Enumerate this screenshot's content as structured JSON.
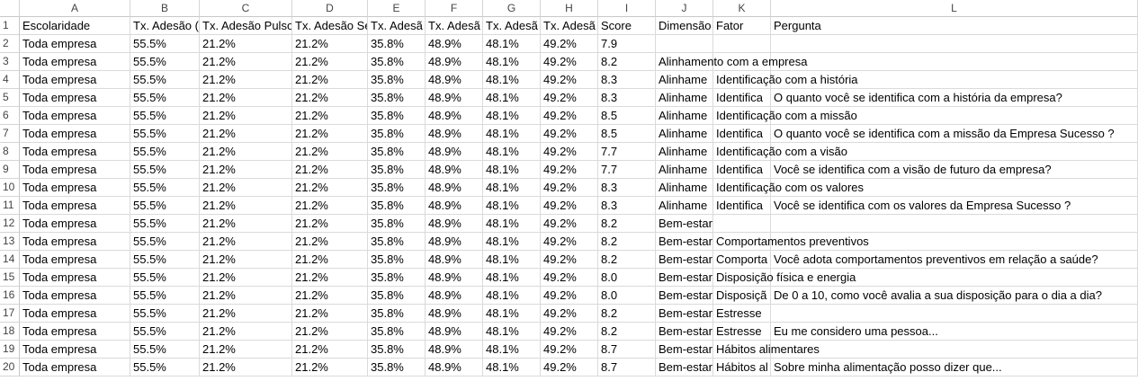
{
  "columns": [
    "A",
    "B",
    "C",
    "D",
    "E",
    "F",
    "G",
    "H",
    "I",
    "J",
    "K",
    "L"
  ],
  "rows": [
    {
      "n": 1,
      "cells": [
        "Escolaridade",
        "Tx. Adesão (",
        "Tx. Adesão Pulso",
        "Tx. Adesão Se",
        "Tx. Adesã",
        "Tx. Adesã",
        "Tx. Adesã",
        "Tx. Adesã",
        "Score",
        "Dimensão",
        "Fator",
        "Pergunta"
      ]
    },
    {
      "n": 2,
      "cells": [
        "Toda empresa",
        "55.5%",
        "21.2%",
        "21.2%",
        "35.8%",
        "48.9%",
        "48.1%",
        "49.2%",
        "7.9",
        null,
        null,
        null
      ]
    },
    {
      "n": 3,
      "cells": [
        "Toda empresa",
        "55.5%",
        "21.2%",
        "21.2%",
        "35.8%",
        "48.9%",
        "48.1%",
        "49.2%",
        "8.2",
        "Alinhamento com a empresa",
        null,
        null
      ]
    },
    {
      "n": 4,
      "cells": [
        "Toda empresa",
        "55.5%",
        "21.2%",
        "21.2%",
        "35.8%",
        "48.9%",
        "48.1%",
        "49.2%",
        "8.3",
        "Alinhame",
        "Identificação com a história",
        null
      ]
    },
    {
      "n": 5,
      "cells": [
        "Toda empresa",
        "55.5%",
        "21.2%",
        "21.2%",
        "35.8%",
        "48.9%",
        "48.1%",
        "49.2%",
        "8.3",
        "Alinhame",
        "Identifica",
        "O quanto você se identifica com a história da empresa?"
      ]
    },
    {
      "n": 6,
      "cells": [
        "Toda empresa",
        "55.5%",
        "21.2%",
        "21.2%",
        "35.8%",
        "48.9%",
        "48.1%",
        "49.2%",
        "8.5",
        "Alinhame",
        "Identificação com a missão",
        null
      ]
    },
    {
      "n": 7,
      "cells": [
        "Toda empresa",
        "55.5%",
        "21.2%",
        "21.2%",
        "35.8%",
        "48.9%",
        "48.1%",
        "49.2%",
        "8.5",
        "Alinhame",
        "Identifica",
        "O quanto você se identifica com a missão da Empresa Sucesso ?"
      ]
    },
    {
      "n": 8,
      "cells": [
        "Toda empresa",
        "55.5%",
        "21.2%",
        "21.2%",
        "35.8%",
        "48.9%",
        "48.1%",
        "49.2%",
        "7.7",
        "Alinhame",
        "Identificação com a visão",
        null
      ]
    },
    {
      "n": 9,
      "cells": [
        "Toda empresa",
        "55.5%",
        "21.2%",
        "21.2%",
        "35.8%",
        "48.9%",
        "48.1%",
        "49.2%",
        "7.7",
        "Alinhame",
        "Identifica",
        "Você se identifica com a visão de futuro da empresa?"
      ]
    },
    {
      "n": 10,
      "cells": [
        "Toda empresa",
        "55.5%",
        "21.2%",
        "21.2%",
        "35.8%",
        "48.9%",
        "48.1%",
        "49.2%",
        "8.3",
        "Alinhame",
        "Identificação com os valores",
        null
      ]
    },
    {
      "n": 11,
      "cells": [
        "Toda empresa",
        "55.5%",
        "21.2%",
        "21.2%",
        "35.8%",
        "48.9%",
        "48.1%",
        "49.2%",
        "8.3",
        "Alinhame",
        "Identifica",
        "Você se identifica com os valores da Empresa Sucesso ?"
      ]
    },
    {
      "n": 12,
      "cells": [
        "Toda empresa",
        "55.5%",
        "21.2%",
        "21.2%",
        "35.8%",
        "48.9%",
        "48.1%",
        "49.2%",
        "8.2",
        "Bem-estar",
        null,
        null
      ]
    },
    {
      "n": 13,
      "cells": [
        "Toda empresa",
        "55.5%",
        "21.2%",
        "21.2%",
        "35.8%",
        "48.9%",
        "48.1%",
        "49.2%",
        "8.2",
        "Bem-estar",
        "Comportamentos preventivos",
        null
      ]
    },
    {
      "n": 14,
      "cells": [
        "Toda empresa",
        "55.5%",
        "21.2%",
        "21.2%",
        "35.8%",
        "48.9%",
        "48.1%",
        "49.2%",
        "8.2",
        "Bem-estar",
        "Comporta",
        "Você adota comportamentos preventivos em relação a saúde?"
      ]
    },
    {
      "n": 15,
      "cells": [
        "Toda empresa",
        "55.5%",
        "21.2%",
        "21.2%",
        "35.8%",
        "48.9%",
        "48.1%",
        "49.2%",
        "8.0",
        "Bem-estar",
        "Disposição física e energia",
        null
      ]
    },
    {
      "n": 16,
      "cells": [
        "Toda empresa",
        "55.5%",
        "21.2%",
        "21.2%",
        "35.8%",
        "48.9%",
        "48.1%",
        "49.2%",
        "8.0",
        "Bem-estar",
        "Disposiçã",
        "De 0 a 10, como você avalia a sua disposição  para o dia a dia?"
      ]
    },
    {
      "n": 17,
      "cells": [
        "Toda empresa",
        "55.5%",
        "21.2%",
        "21.2%",
        "35.8%",
        "48.9%",
        "48.1%",
        "49.2%",
        "8.2",
        "Bem-estar",
        "Estresse",
        null
      ]
    },
    {
      "n": 18,
      "cells": [
        "Toda empresa",
        "55.5%",
        "21.2%",
        "21.2%",
        "35.8%",
        "48.9%",
        "48.1%",
        "49.2%",
        "8.2",
        "Bem-estar",
        "Estresse",
        "Eu me considero uma pessoa..."
      ]
    },
    {
      "n": 19,
      "cells": [
        "Toda empresa",
        "55.5%",
        "21.2%",
        "21.2%",
        "35.8%",
        "48.9%",
        "48.1%",
        "49.2%",
        "8.7",
        "Bem-estar",
        "Hábitos alimentares",
        null
      ]
    },
    {
      "n": 20,
      "cells": [
        "Toda empresa",
        "55.5%",
        "21.2%",
        "21.2%",
        "35.8%",
        "48.9%",
        "48.1%",
        "49.2%",
        "8.7",
        "Bem-estar",
        "Hábitos al",
        "Sobre minha alimentação posso dizer que..."
      ]
    }
  ]
}
